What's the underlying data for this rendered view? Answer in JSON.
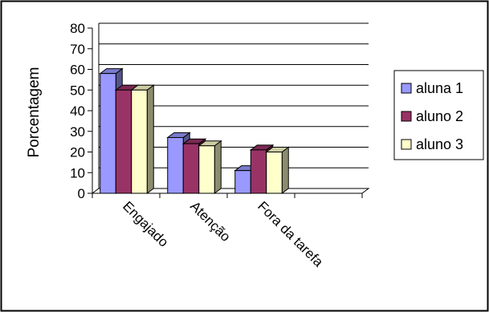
{
  "chart_data": {
    "type": "bar",
    "title": "",
    "xlabel": "",
    "ylabel": "Porcentagem",
    "categories": [
      "Engajado",
      "Atenção",
      "Fora da tarefa",
      ""
    ],
    "series": [
      {
        "name": "aluna 1",
        "values": [
          58,
          27,
          11,
          null
        ],
        "color": "#9999FF"
      },
      {
        "name": "aluno 2",
        "values": [
          50,
          24,
          21,
          null
        ],
        "color": "#993366"
      },
      {
        "name": "aluno 3",
        "values": [
          50,
          23,
          20,
          null
        ],
        "color": "#FFFFCC"
      }
    ],
    "ylim": [
      0,
      80
    ],
    "yticks": [
      0,
      10,
      20,
      30,
      40,
      50,
      60,
      70,
      80
    ],
    "grid": true,
    "legend_position": "right",
    "style": "3d-clustered-column"
  }
}
